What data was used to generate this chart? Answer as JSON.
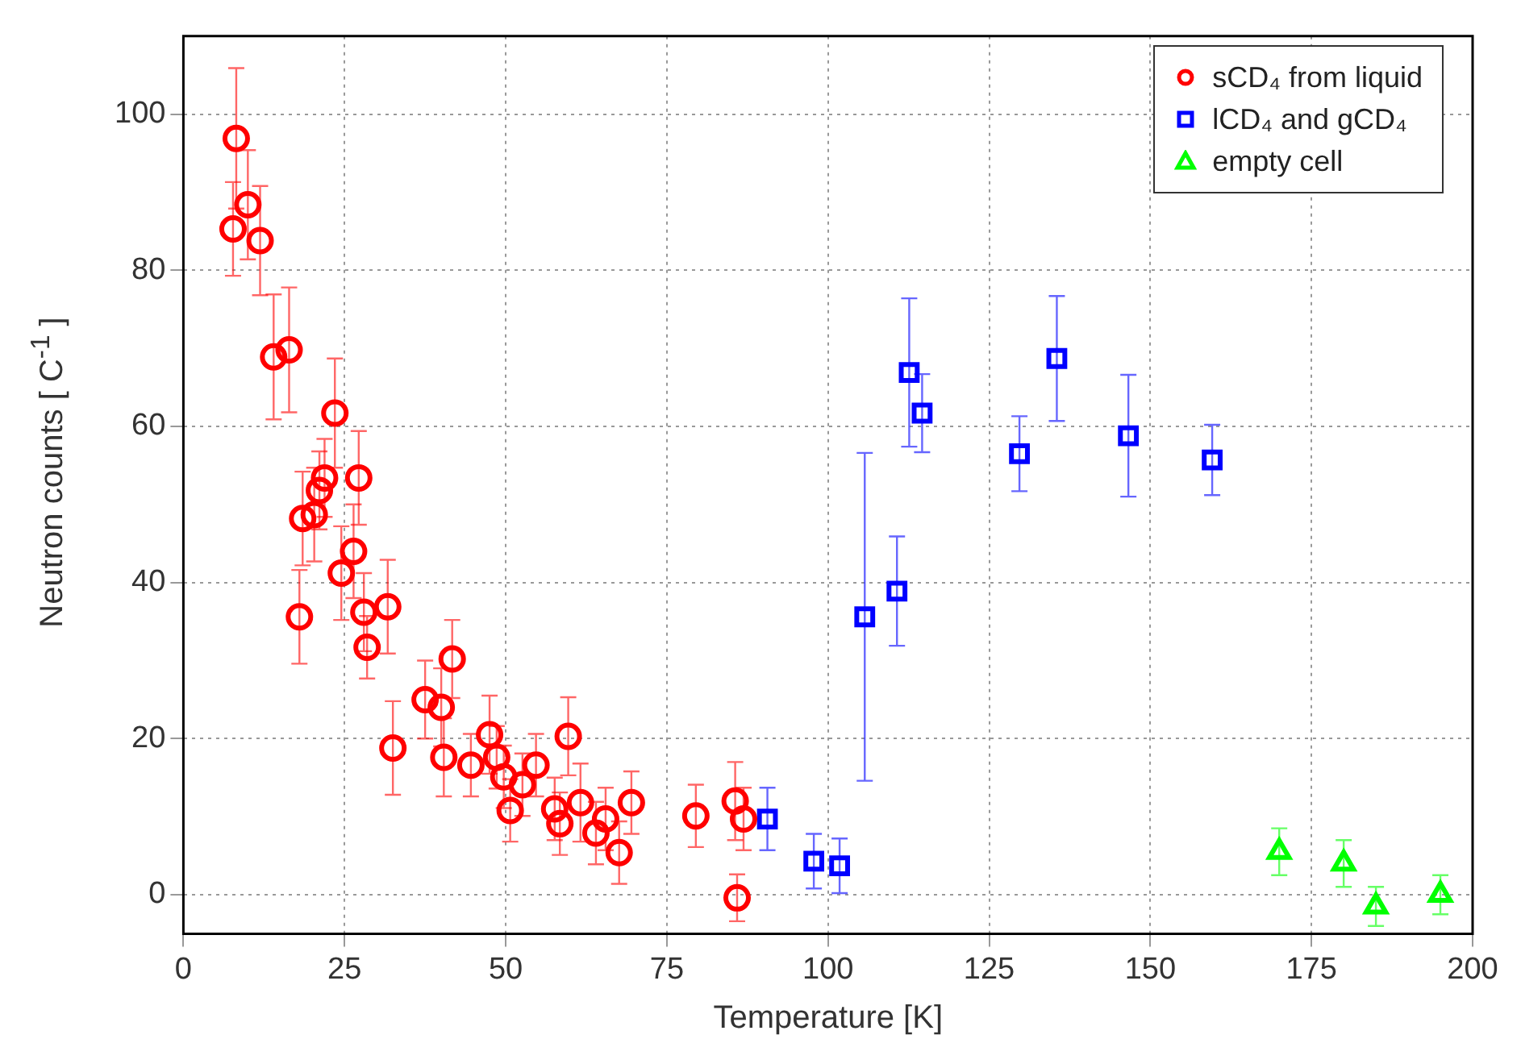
{
  "chart_data": {
    "type": "scatter",
    "xlabel": "Temperature [K]",
    "ylabel": "Neutron counts [ C$^{-1}$ ]",
    "xlim": [
      0,
      200
    ],
    "xticks": [
      0,
      25,
      50,
      75,
      100,
      125,
      150,
      175,
      200
    ],
    "ylim": [
      -5,
      110
    ],
    "yticks": [
      0,
      20,
      40,
      60,
      80,
      100
    ],
    "grid": true,
    "legend": "top right",
    "series": [
      {
        "name": "sCD₄ from liquid",
        "color": "#ff0000",
        "marker": "circle",
        "x": [
          7.7,
          8.2,
          10,
          11.9,
          14,
          16.4,
          18,
          18.5,
          20.3,
          21.1,
          21.9,
          23.5,
          24.5,
          26.4,
          27.2,
          28,
          28.5,
          31.7,
          32.5,
          37.5,
          40,
          41.7,
          40.4,
          44.6,
          47.5,
          48.6,
          49.7,
          50.7,
          52.6,
          54.7,
          57.6,
          58.4,
          59.7,
          61.6,
          64,
          65.5,
          67.6,
          69.5,
          79.5,
          85.6,
          85.9,
          86.9
        ],
        "values": [
          85.3,
          96.9,
          88.4,
          83.8,
          68.9,
          69.8,
          35.6,
          48.2,
          48.7,
          51.8,
          53.4,
          61.7,
          41.2,
          44,
          53.4,
          36.2,
          31.7,
          36.9,
          18.8,
          25,
          24,
          30.2,
          17.6,
          16.6,
          20.5,
          17.6,
          15.1,
          10.8,
          14.1,
          16.6,
          11,
          9.1,
          20.3,
          11.8,
          7.9,
          9.7,
          5.4,
          11.8,
          10.1,
          12,
          -0.4,
          9.7
        ],
        "errors": [
          6,
          9,
          7,
          7,
          8,
          8,
          6,
          6,
          6,
          5,
          5,
          7,
          6,
          6,
          6,
          5,
          4,
          6,
          6,
          5,
          5,
          5,
          5,
          4,
          5,
          4,
          4,
          4,
          4,
          4,
          4,
          4,
          5,
          5,
          4,
          4,
          4,
          4,
          4,
          5,
          3,
          4
        ]
      },
      {
        "name": "lCD₄ and gCD₄",
        "color": "#0000ff",
        "marker": "square",
        "x": [
          90.6,
          97.8,
          101.8,
          105.7,
          110.7,
          112.6,
          114.6,
          129.7,
          135.5,
          146.6,
          159.6
        ],
        "values": [
          9.7,
          4.3,
          3.7,
          35.6,
          38.9,
          66.9,
          61.7,
          56.5,
          68.7,
          58.8,
          55.7
        ],
        "errors": [
          4,
          3.5,
          3.5,
          21,
          7,
          9.5,
          5,
          4.8,
          8,
          7.8,
          4.5
        ]
      },
      {
        "name": "empty cell",
        "color": "#00ff00",
        "marker": "triangle",
        "x": [
          170,
          180,
          185,
          195
        ],
        "values": [
          5.5,
          4,
          -1.5,
          0
        ],
        "errors": [
          3,
          3,
          2.5,
          2.5
        ]
      }
    ]
  }
}
